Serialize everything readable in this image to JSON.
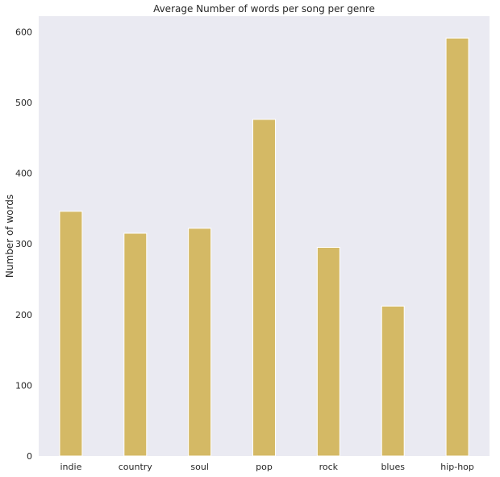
{
  "chart_data": {
    "type": "bar",
    "title": "Average Number of words per song per genre",
    "xlabel": "",
    "ylabel": "Number of words",
    "categories": [
      "indie",
      "country",
      "soul",
      "pop",
      "rock",
      "blues",
      "hip-hop"
    ],
    "values": [
      346,
      315,
      322,
      476,
      295,
      212,
      591
    ],
    "ylim": [
      0,
      622
    ],
    "yticks": [
      0,
      100,
      200,
      300,
      400,
      500,
      600
    ],
    "grid": false,
    "colors": {
      "bar": "#d4b965",
      "plot_background": "#eaeaf2",
      "text": "#262626"
    }
  }
}
